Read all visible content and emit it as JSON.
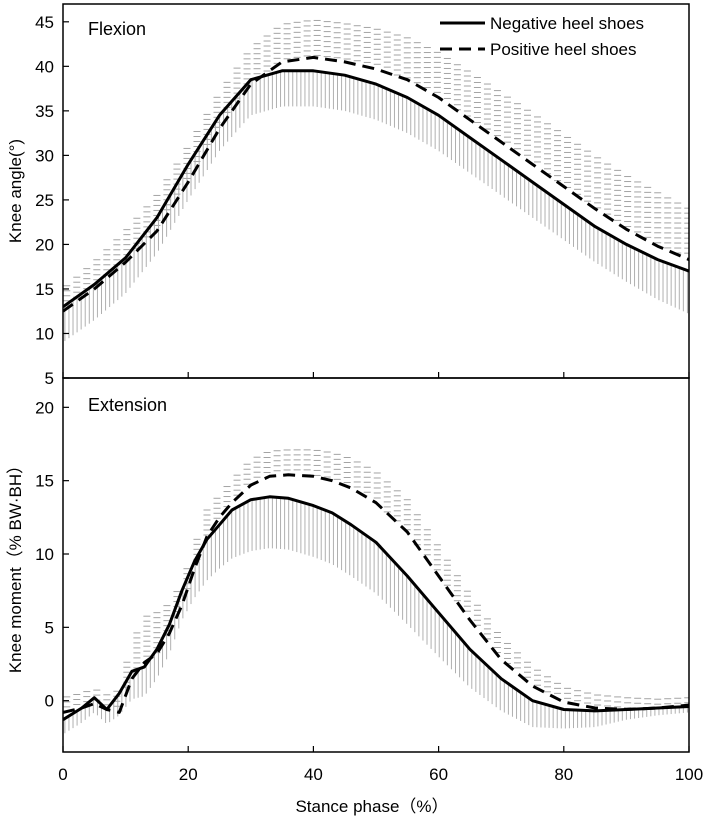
{
  "chart_data": [
    {
      "type": "line",
      "panel_label": "Flexion",
      "ylabel": "Knee angle(°)",
      "xlabel": "",
      "xlim": [
        0,
        100
      ],
      "ylim": [
        5,
        47
      ],
      "y_ticks": [
        "5",
        "10",
        "15",
        "20",
        "25",
        "30",
        "35",
        "40",
        "45"
      ],
      "x_ticks": [],
      "legend": {
        "position": "top-right",
        "entries": [
          {
            "label": "Negative heel shoes",
            "style": "solid"
          },
          {
            "label": "Positive heel shoes",
            "style": "dashed"
          }
        ]
      },
      "x": [
        0,
        5,
        10,
        15,
        20,
        25,
        30,
        35,
        40,
        45,
        50,
        55,
        60,
        65,
        70,
        75,
        80,
        85,
        90,
        95,
        100
      ],
      "series": [
        {
          "name": "Negative heel shoes",
          "style": "solid",
          "values": [
            13.0,
            15.5,
            18.5,
            23.0,
            29.0,
            34.5,
            38.5,
            39.5,
            39.5,
            39.0,
            38.0,
            36.5,
            34.5,
            32.0,
            29.5,
            27.0,
            24.5,
            22.0,
            20.0,
            18.3,
            17.0
          ],
          "sd": [
            4.0,
            4.0,
            4.0,
            4.0,
            4.0,
            4.0,
            4.0,
            4.0,
            4.0,
            4.0,
            4.0,
            4.0,
            4.0,
            4.0,
            4.0,
            4.0,
            4.0,
            4.0,
            4.2,
            4.5,
            4.8
          ]
        },
        {
          "name": "Positive heel shoes",
          "style": "dashed",
          "values": [
            12.5,
            15.0,
            18.0,
            21.5,
            27.0,
            33.0,
            38.0,
            40.5,
            41.0,
            40.5,
            39.7,
            38.5,
            36.5,
            34.0,
            31.5,
            29.0,
            26.5,
            24.0,
            21.7,
            19.8,
            18.3
          ],
          "sd": [
            2.5,
            3.0,
            3.5,
            4.0,
            4.0,
            4.0,
            4.0,
            4.2,
            4.2,
            4.3,
            4.5,
            4.7,
            5.0,
            5.3,
            5.5,
            5.7,
            5.8,
            5.9,
            6.0,
            6.0,
            5.7
          ]
        }
      ]
    },
    {
      "type": "line",
      "panel_label": "Extension",
      "ylabel": "Knee moment（% BW·BH）",
      "xlabel": "Stance phase（%）",
      "xlim": [
        0,
        100
      ],
      "ylim": [
        -3.5,
        22
      ],
      "y_ticks": [
        "0",
        "5",
        "10",
        "15",
        "20"
      ],
      "x_ticks": [
        "0",
        "20",
        "40",
        "60",
        "80",
        "100"
      ],
      "x": [
        0,
        3,
        5,
        7,
        9,
        11,
        13,
        15,
        17,
        19,
        21,
        23,
        25,
        27,
        30,
        33,
        36,
        40,
        43,
        46,
        50,
        55,
        60,
        65,
        70,
        75,
        80,
        85,
        90,
        95,
        100
      ],
      "series": [
        {
          "name": "Negative heel shoes",
          "style": "solid",
          "values": [
            -1.3,
            -0.5,
            0.2,
            -0.6,
            0.5,
            2.0,
            2.3,
            3.5,
            5.2,
            7.5,
            9.5,
            11.0,
            12.0,
            13.0,
            13.7,
            13.9,
            13.8,
            13.3,
            12.8,
            12.0,
            10.8,
            8.5,
            6.0,
            3.5,
            1.5,
            0.0,
            -0.6,
            -0.7,
            -0.6,
            -0.5,
            -0.4
          ],
          "sd": [
            1.0,
            1.0,
            1.0,
            1.0,
            1.5,
            1.9,
            2.0,
            2.0,
            2.0,
            2.0,
            2.5,
            2.8,
            3.0,
            3.3,
            3.5,
            3.5,
            3.5,
            3.5,
            3.5,
            3.5,
            3.5,
            3.3,
            3.0,
            2.6,
            2.2,
            1.8,
            1.3,
            1.1,
            0.7,
            0.5,
            0.4
          ]
        },
        {
          "name": "Positive heel shoes",
          "style": "dashed",
          "values": [
            -0.8,
            -0.5,
            -0.2,
            -0.6,
            -0.8,
            1.5,
            2.6,
            3.2,
            4.6,
            6.5,
            9.0,
            11.2,
            12.5,
            13.5,
            14.7,
            15.3,
            15.4,
            15.3,
            15.0,
            14.5,
            13.5,
            11.5,
            8.5,
            5.5,
            2.8,
            1.0,
            -0.1,
            -0.5,
            -0.6,
            -0.5,
            -0.3
          ],
          "sd": [
            1.0,
            1.0,
            1.0,
            1.0,
            1.5,
            2.4,
            3.1,
            2.8,
            2.0,
            1.5,
            1.5,
            1.8,
            1.5,
            1.5,
            1.7,
            1.7,
            1.7,
            1.8,
            1.9,
            2.0,
            2.1,
            2.2,
            2.0,
            1.7,
            1.5,
            1.3,
            1.0,
            0.9,
            0.8,
            0.6,
            0.5
          ]
        }
      ]
    }
  ]
}
